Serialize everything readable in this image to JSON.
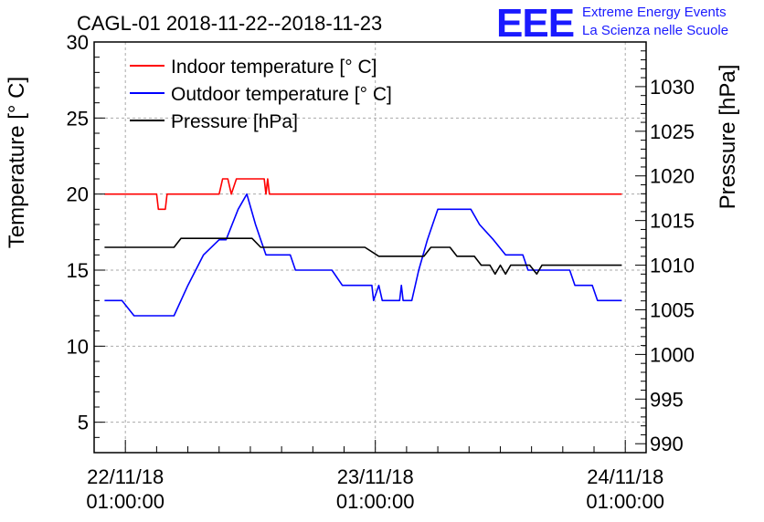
{
  "chart_data": {
    "type": "line",
    "title": "CAGL-01 2018-11-22--2018-11-23",
    "ylabel": "Temperature [° C]",
    "y2label": "Pressure [hPa]",
    "ylim": [
      3,
      30
    ],
    "y2lim": [
      989,
      1035
    ],
    "yticks": [
      5,
      10,
      15,
      20,
      25,
      30
    ],
    "y2ticks": [
      990,
      995,
      1000,
      1005,
      1010,
      1015,
      1020,
      1025,
      1030
    ],
    "xlim": [
      "2018-11-21 22:00:00",
      "2018-11-24 03:00:00"
    ],
    "xticks": [
      {
        "value": "2018-11-22 01:00:00",
        "line1": "22/11/18",
        "line2": "01:00:00"
      },
      {
        "value": "2018-11-23 01:00:00",
        "line1": "23/11/18",
        "line2": "01:00:00"
      },
      {
        "value": "2018-11-24 01:00:00",
        "line1": "24/11/18",
        "line2": "01:00:00"
      }
    ],
    "grid": true,
    "legend_position": "top-left",
    "series": [
      {
        "name": "Indoor temperature [° C]",
        "color": "#ff0000",
        "axis": "left",
        "points": [
          [
            "2018-11-21 23:00",
            20
          ],
          [
            "2018-11-22 04:00",
            20
          ],
          [
            "2018-11-22 04:10",
            19
          ],
          [
            "2018-11-22 04:50",
            19
          ],
          [
            "2018-11-22 05:00",
            20
          ],
          [
            "2018-11-22 10:00",
            20
          ],
          [
            "2018-11-22 10:20",
            21
          ],
          [
            "2018-11-22 10:50",
            21
          ],
          [
            "2018-11-22 11:10",
            20
          ],
          [
            "2018-11-22 11:40",
            21
          ],
          [
            "2018-11-22 14:20",
            21
          ],
          [
            "2018-11-22 14:30",
            20
          ],
          [
            "2018-11-22 14:40",
            21
          ],
          [
            "2018-11-22 14:50",
            20
          ],
          [
            "2018-11-24 00:40",
            20
          ]
        ]
      },
      {
        "name": "Outdoor temperature [° C]",
        "color": "#0000ff",
        "axis": "left",
        "points": [
          [
            "2018-11-21 23:00",
            13
          ],
          [
            "2018-11-22 00:40",
            13
          ],
          [
            "2018-11-22 01:50",
            12
          ],
          [
            "2018-11-22 05:40",
            12
          ],
          [
            "2018-11-22 07:00",
            14
          ],
          [
            "2018-11-22 08:30",
            16
          ],
          [
            "2018-11-22 10:00",
            17
          ],
          [
            "2018-11-22 10:40",
            17
          ],
          [
            "2018-11-22 11:50",
            19
          ],
          [
            "2018-11-22 12:40",
            20
          ],
          [
            "2018-11-22 13:30",
            18
          ],
          [
            "2018-11-22 14:00",
            17
          ],
          [
            "2018-11-22 14:30",
            16
          ],
          [
            "2018-11-22 16:50",
            16
          ],
          [
            "2018-11-22 17:20",
            15
          ],
          [
            "2018-11-22 20:50",
            15
          ],
          [
            "2018-11-22 21:50",
            14
          ],
          [
            "2018-11-23 00:40",
            14
          ],
          [
            "2018-11-23 00:50",
            13
          ],
          [
            "2018-11-23 01:20",
            14
          ],
          [
            "2018-11-23 01:40",
            13
          ],
          [
            "2018-11-23 03:20",
            13
          ],
          [
            "2018-11-23 03:30",
            14
          ],
          [
            "2018-11-23 03:40",
            13
          ],
          [
            "2018-11-23 04:30",
            13
          ],
          [
            "2018-11-23 05:10",
            15
          ],
          [
            "2018-11-23 06:00",
            17
          ],
          [
            "2018-11-23 07:00",
            19
          ],
          [
            "2018-11-23 10:10",
            19
          ],
          [
            "2018-11-23 11:00",
            18
          ],
          [
            "2018-11-23 12:20",
            17
          ],
          [
            "2018-11-23 13:30",
            16
          ],
          [
            "2018-11-23 15:10",
            16
          ],
          [
            "2018-11-23 15:40",
            15
          ],
          [
            "2018-11-23 19:40",
            15
          ],
          [
            "2018-11-23 20:10",
            14
          ],
          [
            "2018-11-23 21:50",
            14
          ],
          [
            "2018-11-23 22:20",
            13
          ],
          [
            "2018-11-24 00:40",
            13
          ]
        ]
      },
      {
        "name": "Pressure [hPa]",
        "color": "#000000",
        "axis": "right",
        "points": [
          [
            "2018-11-21 23:00",
            1012
          ],
          [
            "2018-11-22 05:40",
            1012
          ],
          [
            "2018-11-22 06:20",
            1013
          ],
          [
            "2018-11-22 13:10",
            1013
          ],
          [
            "2018-11-22 14:00",
            1012
          ],
          [
            "2018-11-23 00:00",
            1012
          ],
          [
            "2018-11-23 01:20",
            1011
          ],
          [
            "2018-11-23 05:40",
            1011
          ],
          [
            "2018-11-23 06:20",
            1012
          ],
          [
            "2018-11-23 08:10",
            1012
          ],
          [
            "2018-11-23 08:50",
            1011
          ],
          [
            "2018-11-23 10:30",
            1011
          ],
          [
            "2018-11-23 11:10",
            1010
          ],
          [
            "2018-11-23 12:00",
            1010
          ],
          [
            "2018-11-23 12:30",
            1009
          ],
          [
            "2018-11-23 13:00",
            1010
          ],
          [
            "2018-11-23 13:30",
            1009
          ],
          [
            "2018-11-23 14:00",
            1010
          ],
          [
            "2018-11-23 15:50",
            1010
          ],
          [
            "2018-11-23 16:30",
            1009
          ],
          [
            "2018-11-23 17:00",
            1010
          ],
          [
            "2018-11-24 00:40",
            1010
          ]
        ]
      }
    ]
  },
  "logo": {
    "text": "EEE",
    "line1": "Extreme Energy Events",
    "line2": "La Scienza nelle Scuole",
    "color": "#1a1aff"
  }
}
